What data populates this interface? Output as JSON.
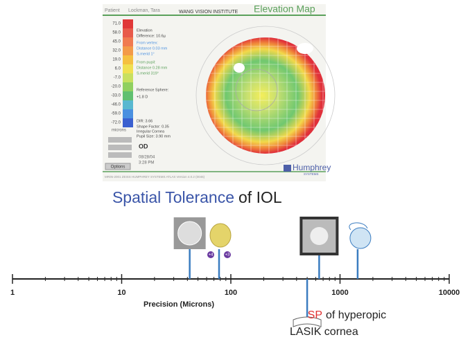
{
  "elevation_map": {
    "patient_label": "Patient",
    "patient_name": "Lockman, Tara",
    "institute": "WANG VISION INSTITUTE",
    "title": "Elevation Map",
    "scale": [
      "71.0",
      "58.0",
      "45.0",
      "32.0",
      "19.0",
      "6.0",
      "-7.0",
      "-20.0",
      "-33.0",
      "-46.0",
      "-59.0",
      "-72.0"
    ],
    "scale_unit": "microns",
    "info": [
      "Elevation",
      "Difference:   10.6µ",
      "From vertex:",
      "Distance   0.03 mm",
      "S.merid   1°",
      "From pupil:",
      "Distance   0.28 mm",
      "S.merid   319°",
      "Reference Sphere:",
      "+1.8 D",
      "DIR:  3.66",
      "Shape Factor: 0.35",
      "Irregular Cornea",
      "Pupil Size: 3.90 mm"
    ],
    "eye": "OD",
    "date": "08/28/04",
    "time": "3:28 PM",
    "options": "Options",
    "brand": "Humphrey",
    "brand_sub": "SYSTEMS",
    "footer": "MR05-2001 ZEISS HUMPHREY SYSTEMS ATLAS Version 4.0.2 (0045)"
  },
  "slide": {
    "title_highlight": "Spatial Tolerance",
    "title_rest": "of IOL",
    "axis": {
      "label": "Precision (Microns)",
      "xlim": [
        1,
        10000
      ],
      "xticks": [
        1,
        10,
        100,
        1000,
        10000
      ],
      "log_scale": true
    },
    "markers": [
      {
        "value": 42
      },
      {
        "value": 78,
        "badges": [
          "+4",
          "+3"
        ]
      },
      {
        "value": 644
      },
      {
        "value": 1450
      }
    ],
    "sp_marker": {
      "value": 500,
      "highlight": "SP",
      "text": "of hyperopic",
      "line2": "LASIK cornea"
    }
  }
}
